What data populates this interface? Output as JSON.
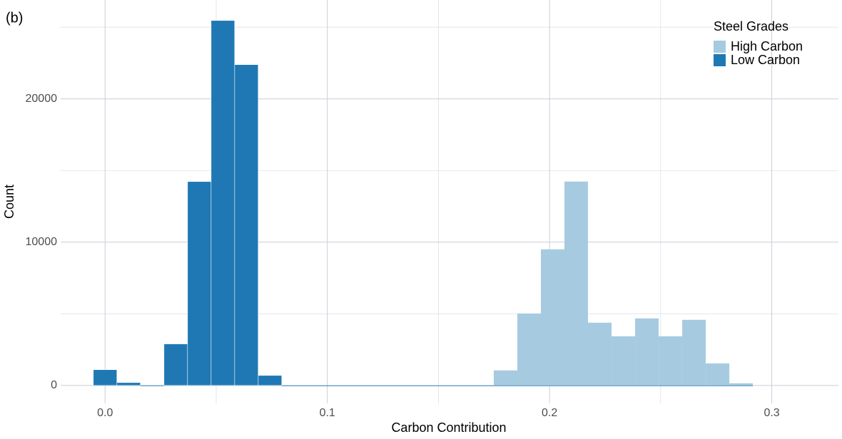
{
  "chart_data": {
    "type": "histogram",
    "annotation": "(b)",
    "x_label": "Carbon Contribution",
    "y_label": "Count",
    "legend_title": "Steel Grades",
    "legend_position": "top-right",
    "bins": [
      -0.0053,
      0.0053,
      0.0159,
      0.0265,
      0.0371,
      0.0477,
      0.0583,
      0.0689,
      0.0795,
      0.0901,
      0.1007,
      0.1113,
      0.1219,
      0.1325,
      0.1431,
      0.1537,
      0.1643,
      0.1749,
      0.1855,
      0.1961,
      0.2067,
      0.2173,
      0.2279,
      0.2385,
      0.2491,
      0.2597,
      0.2703,
      0.2809,
      0.2915
    ],
    "series": [
      {
        "name": "High Carbon",
        "color": "#a6cbe0",
        "values": [
          0,
          0,
          0,
          0,
          0,
          0,
          0,
          0,
          0,
          0,
          0,
          0,
          0,
          0,
          0,
          0,
          0,
          1050,
          5020,
          9500,
          14230,
          4380,
          3430,
          4680,
          3430,
          4580,
          1540,
          150
        ]
      },
      {
        "name": "Low Carbon",
        "color": "#1f78b4",
        "values": [
          1100,
          200,
          0,
          2900,
          14230,
          25470,
          22390,
          700,
          0,
          0,
          0,
          0,
          0,
          0,
          0,
          0,
          0,
          0,
          0,
          0,
          0,
          0,
          0,
          0,
          0,
          0,
          0,
          0
        ]
      }
    ],
    "xlim": [
      -0.02,
      0.33
    ],
    "ylim": [
      -1250,
      26900
    ],
    "xticks": [
      {
        "value": 0,
        "label": "0.0"
      },
      0.1,
      0.2,
      0.3
    ],
    "yticks": [
      0,
      10000,
      20000
    ],
    "grid": true
  }
}
